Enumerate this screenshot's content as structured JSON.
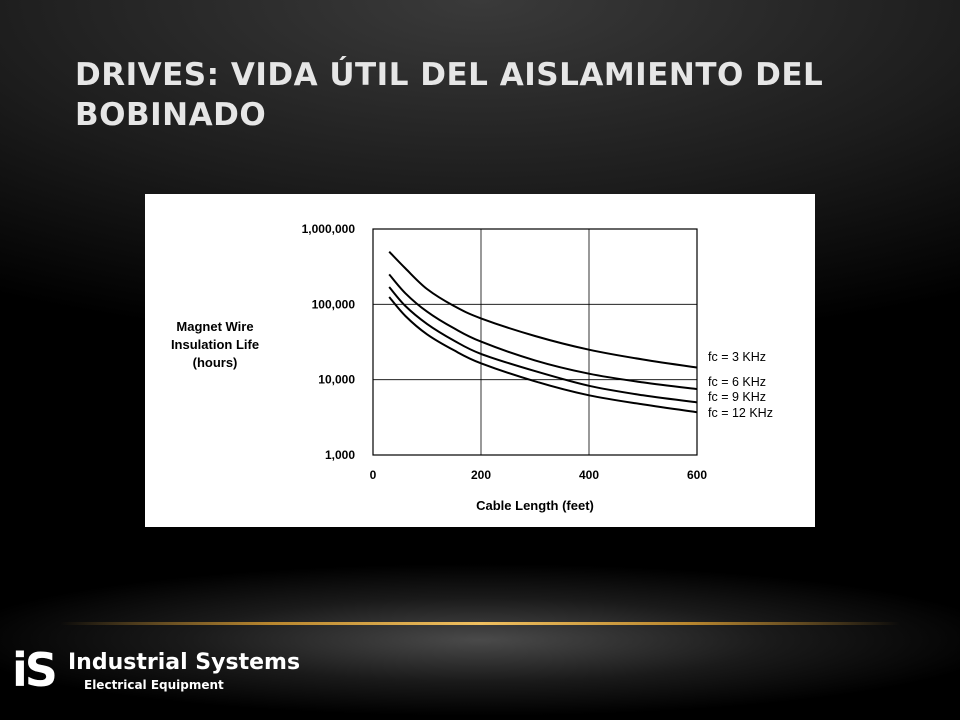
{
  "slide": {
    "title": "DRIVES: VIDA ÚTIL DEL AISLAMIENTO DEL BOBINADO"
  },
  "logo": {
    "mark": "iS",
    "name": "Industrial Systems",
    "subtitle": "Electrical Equipment"
  },
  "chart_data": {
    "type": "line",
    "title": "",
    "xlabel": "Cable Length (feet)",
    "ylabel_lines": [
      "Magnet Wire",
      "Insulation Life",
      "(hours)"
    ],
    "xlim": [
      0,
      600
    ],
    "ylim": [
      1000,
      1000000
    ],
    "yscale": "log",
    "x_ticks": [
      0,
      200,
      400,
      600
    ],
    "x_tick_labels": [
      "0",
      "200",
      "400",
      "600"
    ],
    "y_ticks": [
      1000,
      10000,
      100000,
      1000000
    ],
    "y_tick_labels": [
      "1,000",
      "10,000",
      "100,000",
      "1,000,000"
    ],
    "grid": true,
    "legend_placement": "right",
    "series": [
      {
        "name": "fc = 3 KHz",
        "x": [
          30,
          60,
          100,
          150,
          200,
          300,
          400,
          500,
          600
        ],
        "y": [
          500000,
          300000,
          160000,
          95000,
          65000,
          38000,
          25000,
          18500,
          14500
        ]
      },
      {
        "name": "fc = 6 KHz",
        "x": [
          30,
          60,
          100,
          150,
          200,
          300,
          400,
          500,
          600
        ],
        "y": [
          250000,
          140000,
          80000,
          48000,
          32000,
          18000,
          12000,
          9200,
          7500
        ]
      },
      {
        "name": "fc = 9 KHz",
        "x": [
          30,
          60,
          100,
          150,
          200,
          300,
          400,
          500,
          600
        ],
        "y": [
          170000,
          95000,
          55000,
          33000,
          22000,
          13000,
          8300,
          6200,
          5000
        ]
      },
      {
        "name": "fc = 12 KHz",
        "x": [
          30,
          60,
          100,
          150,
          200,
          300,
          400,
          500,
          600
        ],
        "y": [
          125000,
          70000,
          40000,
          24500,
          16500,
          9500,
          6200,
          4700,
          3700
        ]
      }
    ]
  }
}
